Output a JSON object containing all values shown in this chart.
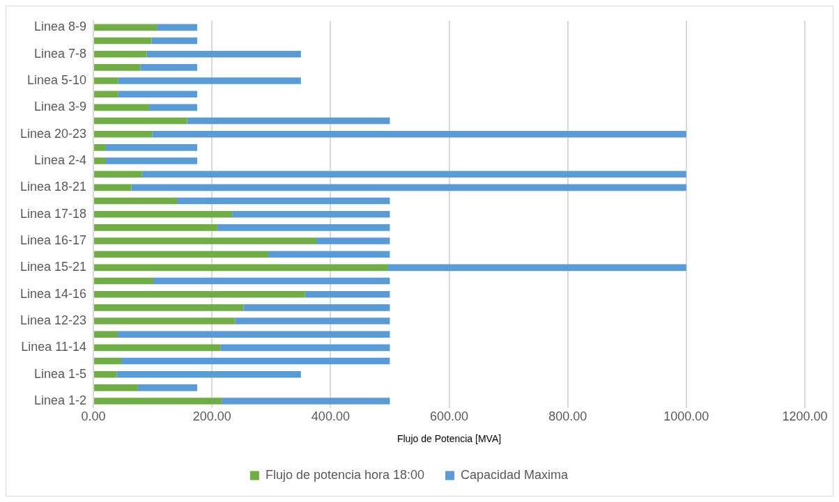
{
  "chart_data": {
    "type": "bar",
    "orientation": "horizontal",
    "stacked": true,
    "xlabel": "Flujo de Potencia [MVA]",
    "categories": [
      "Linea 8-9",
      null,
      "Linea 7-8",
      null,
      "Linea 5-10",
      null,
      "Linea 3-9",
      null,
      "Linea 20-23",
      null,
      "Linea 2-4",
      null,
      "Linea 18-21",
      null,
      "Linea 17-18",
      null,
      "Linea 16-17",
      null,
      "Linea 15-21",
      null,
      "Linea 14-16",
      null,
      "Linea 12-23",
      null,
      "Linea 11-14",
      null,
      "Linea 1-5",
      null,
      "Linea 1-2"
    ],
    "series": [
      {
        "name": "Flujo de potencia hora 18:00",
        "color": "#70ad47",
        "values": [
          107,
          98,
          90,
          79,
          42,
          42,
          94,
          158,
          99,
          21,
          21,
          82,
          64,
          141,
          234,
          209,
          376,
          295,
          496,
          101,
          357,
          253,
          239,
          41,
          214,
          47,
          39,
          75,
          216
        ]
      },
      {
        "name": "Capacidad Maxima",
        "color": "#5b9bd5",
        "values": [
          68,
          77,
          260,
          96,
          308,
          133,
          81,
          342,
          901,
          154,
          154,
          918,
          936,
          359,
          266,
          291,
          124,
          205,
          504,
          399,
          143,
          247,
          261,
          459,
          286,
          453,
          311,
          100,
          284
        ]
      }
    ],
    "xlim": [
      0,
      1200
    ],
    "xticks": [
      {
        "value": 0,
        "label": "0.00"
      },
      {
        "value": 200,
        "label": "200.00"
      },
      {
        "value": 400,
        "label": "400.00"
      },
      {
        "value": 600,
        "label": "600.00"
      },
      {
        "value": 800,
        "label": "800.00"
      },
      {
        "value": 1000,
        "label": "1000.00"
      },
      {
        "value": 1200,
        "label": "1200.00"
      }
    ],
    "grid": "x",
    "legend": "bottom"
  }
}
